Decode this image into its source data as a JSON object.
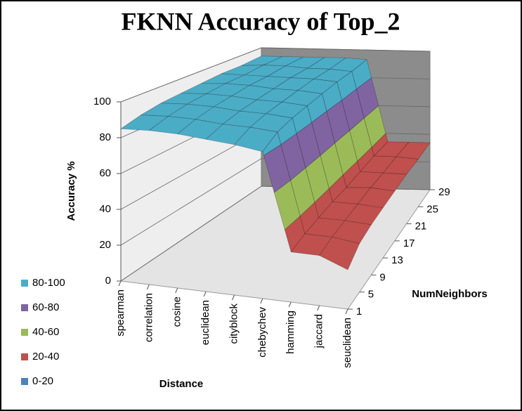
{
  "chart_data": {
    "type": "surface",
    "title": "FKNN Accuracy of Top_2",
    "x_label": "Distance",
    "y_label": "Accuracy %",
    "z_label": "NumNeighbors",
    "categories": [
      "spearman",
      "correlation",
      "cosine",
      "euclidean",
      "cityblock",
      "chebychev",
      "hamming",
      "jaccard",
      "seuclidean"
    ],
    "series": [
      {
        "name": "1",
        "values": [
          85,
          86,
          86,
          85,
          84,
          82,
          28,
          28,
          22
        ]
      },
      {
        "name": "5",
        "values": [
          88,
          89,
          89,
          88,
          88,
          87,
          30,
          30,
          28
        ]
      },
      {
        "name": "9",
        "values": [
          90,
          91,
          91,
          90,
          90,
          89,
          31,
          31,
          30
        ]
      },
      {
        "name": "13",
        "values": [
          91,
          92,
          92,
          91,
          91,
          90,
          32,
          32,
          31
        ]
      },
      {
        "name": "17",
        "values": [
          92,
          93,
          93,
          92,
          92,
          91,
          32,
          33,
          32
        ]
      },
      {
        "name": "21",
        "values": [
          93,
          93,
          93,
          93,
          93,
          92,
          33,
          33,
          33
        ]
      },
      {
        "name": "25",
        "values": [
          93,
          94,
          94,
          93,
          93,
          92,
          34,
          34,
          33
        ]
      },
      {
        "name": "29",
        "values": [
          94,
          94,
          94,
          94,
          94,
          93,
          34,
          34,
          34
        ]
      }
    ],
    "ylim": [
      0,
      100
    ],
    "yticks": [
      0,
      20,
      40,
      60,
      80,
      100
    ],
    "grid": true,
    "bands": [
      {
        "label": "0-20",
        "color": "#4f81bd"
      },
      {
        "label": "20-40",
        "color": "#c0504d"
      },
      {
        "label": "40-60",
        "color": "#9bbb59"
      },
      {
        "label": "60-80",
        "color": "#8064a2"
      },
      {
        "label": "80-100",
        "color": "#4bacc6"
      }
    ],
    "legend": "bottom-left"
  }
}
